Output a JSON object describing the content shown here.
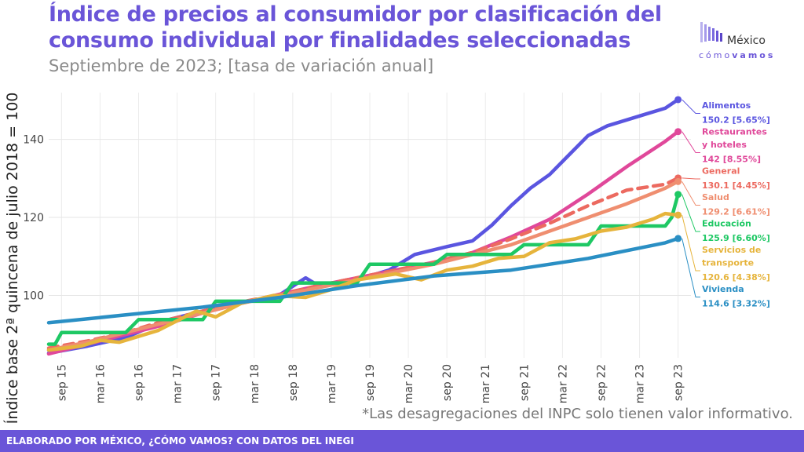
{
  "header": {
    "title": "Índice de precios al consumidor por clasificación del consumo individual por finalidades seleccionadas",
    "subtitle": "Septiembre de 2023; [tasa de variación anual]"
  },
  "logo": {
    "name": "México",
    "tagline_a": "cómo",
    "tagline_b": "vamos",
    "icon": "bar-logo-icon"
  },
  "note": "*Las desagregaciones del INPC solo tienen valor informativo.",
  "footer": {
    "text": "ELABORADO POR MÉXICO, ¿CÓMO VAMOS? CON DATOS DEL INEGI"
  },
  "chart_data": {
    "type": "line",
    "ylabel": "Índice base 2ª quincena de julio 2018 = 100",
    "xlabel": "",
    "ylim": [
      84,
      152
    ],
    "yticks": [
      100,
      120,
      140
    ],
    "xlim": [
      "2015-07",
      "2023-11"
    ],
    "xticks": [
      "sep 15",
      "mar 16",
      "sep 16",
      "mar 17",
      "sep 17",
      "mar 18",
      "sep 18",
      "mar 19",
      "sep 19",
      "mar 20",
      "sep 20",
      "mar 21",
      "sep 21",
      "mar 22",
      "sep 22",
      "mar 23",
      "sep 23"
    ],
    "grid": true,
    "series": [
      {
        "name": "Alimentos",
        "label_lines": [
          "Alimentos"
        ],
        "value_label": "150.2 [5.65%]",
        "color": "#5a55e0",
        "dashed": false,
        "points": [
          [
            "2015-07",
            85.2
          ],
          [
            "2016-01",
            87.0
          ],
          [
            "2016-07",
            89.2
          ],
          [
            "2017-01",
            93.5
          ],
          [
            "2017-07",
            96.0
          ],
          [
            "2018-01",
            98.0
          ],
          [
            "2018-07",
            100.2
          ],
          [
            "2018-11",
            104.5
          ],
          [
            "2019-01",
            102.5
          ],
          [
            "2019-07",
            104.0
          ],
          [
            "2019-12",
            106.5
          ],
          [
            "2020-04",
            110.5
          ],
          [
            "2020-09",
            112.5
          ],
          [
            "2021-01",
            114.0
          ],
          [
            "2021-04",
            118.0
          ],
          [
            "2021-07",
            123.0
          ],
          [
            "2021-10",
            127.5
          ],
          [
            "2022-01",
            131.0
          ],
          [
            "2022-04",
            136.0
          ],
          [
            "2022-07",
            141.0
          ],
          [
            "2022-10",
            143.5
          ],
          [
            "2023-01",
            145.0
          ],
          [
            "2023-04",
            146.5
          ],
          [
            "2023-07",
            148.0
          ],
          [
            "2023-09",
            150.2
          ]
        ]
      },
      {
        "name": "Restaurantes y hoteles",
        "label_lines": [
          "Restaurantes",
          "y hoteles"
        ],
        "value_label": "142 [8.55%]",
        "color": "#e0489a",
        "dashed": false,
        "points": [
          [
            "2015-07",
            85.0
          ],
          [
            "2016-01",
            87.5
          ],
          [
            "2016-07",
            90.0
          ],
          [
            "2017-01",
            92.5
          ],
          [
            "2017-07",
            95.5
          ],
          [
            "2018-01",
            98.0
          ],
          [
            "2018-07",
            100.3
          ],
          [
            "2019-01",
            102.5
          ],
          [
            "2019-07",
            104.5
          ],
          [
            "2020-01",
            106.5
          ],
          [
            "2020-07",
            108.5
          ],
          [
            "2021-01",
            111.0
          ],
          [
            "2021-07",
            115.0
          ],
          [
            "2022-01",
            119.5
          ],
          [
            "2022-07",
            126.0
          ],
          [
            "2023-01",
            133.0
          ],
          [
            "2023-07",
            139.5
          ],
          [
            "2023-09",
            142.0
          ]
        ]
      },
      {
        "name": "General",
        "label_lines": [
          "General"
        ],
        "value_label": "130.1 [4.45%]",
        "color": "#ec6a60",
        "dashed": true,
        "points": [
          [
            "2015-07",
            86.5
          ],
          [
            "2016-01",
            88.3
          ],
          [
            "2016-07",
            90.5
          ],
          [
            "2017-01",
            93.5
          ],
          [
            "2017-07",
            96.0
          ],
          [
            "2018-01",
            98.3
          ],
          [
            "2018-07",
            100.2
          ],
          [
            "2019-01",
            102.5
          ],
          [
            "2019-07",
            104.5
          ],
          [
            "2020-01",
            106.5
          ],
          [
            "2020-07",
            108.5
          ],
          [
            "2021-01",
            111.0
          ],
          [
            "2021-07",
            114.5
          ],
          [
            "2022-01",
            118.5
          ],
          [
            "2022-07",
            123.0
          ],
          [
            "2023-01",
            127.0
          ],
          [
            "2023-07",
            128.5
          ],
          [
            "2023-09",
            130.1
          ]
        ]
      },
      {
        "name": "Salud",
        "label_lines": [
          "Salud"
        ],
        "value_label": "129.2 [6.61%]",
        "color": "#ef8e70",
        "dashed": false,
        "points": [
          [
            "2015-07",
            86.0
          ],
          [
            "2016-01",
            88.0
          ],
          [
            "2016-07",
            90.5
          ],
          [
            "2017-01",
            93.0
          ],
          [
            "2017-07",
            95.5
          ],
          [
            "2018-01",
            98.0
          ],
          [
            "2018-07",
            100.0
          ],
          [
            "2019-01",
            102.0
          ],
          [
            "2019-07",
            104.0
          ],
          [
            "2020-01",
            106.0
          ],
          [
            "2020-07",
            108.0
          ],
          [
            "2021-01",
            110.5
          ],
          [
            "2021-07",
            113.0
          ],
          [
            "2022-01",
            116.5
          ],
          [
            "2022-07",
            120.0
          ],
          [
            "2023-01",
            123.5
          ],
          [
            "2023-07",
            127.5
          ],
          [
            "2023-09",
            129.2
          ]
        ]
      },
      {
        "name": "Educación",
        "label_lines": [
          "Educación"
        ],
        "value_label": "125.9 [6.60%]",
        "color": "#1ec864",
        "dashed": false,
        "points": [
          [
            "2015-07",
            87.5
          ],
          [
            "2015-08",
            87.5
          ],
          [
            "2015-09",
            90.5
          ],
          [
            "2016-07",
            90.5
          ],
          [
            "2016-09",
            93.8
          ],
          [
            "2017-07",
            93.8
          ],
          [
            "2017-09",
            98.5
          ],
          [
            "2018-07",
            98.5
          ],
          [
            "2018-09",
            103.2
          ],
          [
            "2019-07",
            103.2
          ],
          [
            "2019-09",
            108.0
          ],
          [
            "2020-07",
            108.0
          ],
          [
            "2020-09",
            110.5
          ],
          [
            "2021-07",
            110.5
          ],
          [
            "2021-09",
            113.0
          ],
          [
            "2022-07",
            113.0
          ],
          [
            "2022-09",
            117.8
          ],
          [
            "2023-07",
            117.8
          ],
          [
            "2023-08",
            120.0
          ],
          [
            "2023-09",
            125.9
          ]
        ]
      },
      {
        "name": "Servicios de transporte",
        "label_lines": [
          "Servicios de",
          "transporte"
        ],
        "value_label": "120.6 [4.38%]",
        "color": "#e6b43c",
        "dashed": false,
        "points": [
          [
            "2015-07",
            86.0
          ],
          [
            "2015-12",
            87.0
          ],
          [
            "2016-03",
            88.5
          ],
          [
            "2016-06",
            88.0
          ],
          [
            "2016-12",
            91.0
          ],
          [
            "2017-03",
            93.5
          ],
          [
            "2017-06",
            96.0
          ],
          [
            "2017-09",
            94.5
          ],
          [
            "2018-01",
            98.0
          ],
          [
            "2018-06",
            100.0
          ],
          [
            "2018-11",
            99.5
          ],
          [
            "2019-03",
            101.5
          ],
          [
            "2019-07",
            104.0
          ],
          [
            "2020-01",
            105.5
          ],
          [
            "2020-05",
            104.0
          ],
          [
            "2020-09",
            106.5
          ],
          [
            "2021-01",
            107.5
          ],
          [
            "2021-05",
            109.5
          ],
          [
            "2021-09",
            110.0
          ],
          [
            "2022-01",
            113.5
          ],
          [
            "2022-05",
            114.5
          ],
          [
            "2022-09",
            116.5
          ],
          [
            "2023-01",
            117.5
          ],
          [
            "2023-05",
            119.5
          ],
          [
            "2023-07",
            121.0
          ],
          [
            "2023-09",
            120.6
          ]
        ]
      },
      {
        "name": "Vivienda",
        "label_lines": [
          "Vivienda"
        ],
        "value_label": "114.6 [3.32%]",
        "color": "#2a8fc4",
        "dashed": false,
        "points": [
          [
            "2015-07",
            93.0
          ],
          [
            "2016-07",
            95.0
          ],
          [
            "2017-07",
            97.0
          ],
          [
            "2018-07",
            99.5
          ],
          [
            "2019-07",
            102.5
          ],
          [
            "2020-07",
            105.0
          ],
          [
            "2021-07",
            106.5
          ],
          [
            "2022-07",
            109.5
          ],
          [
            "2023-07",
            113.5
          ],
          [
            "2023-09",
            114.6
          ]
        ]
      }
    ]
  }
}
